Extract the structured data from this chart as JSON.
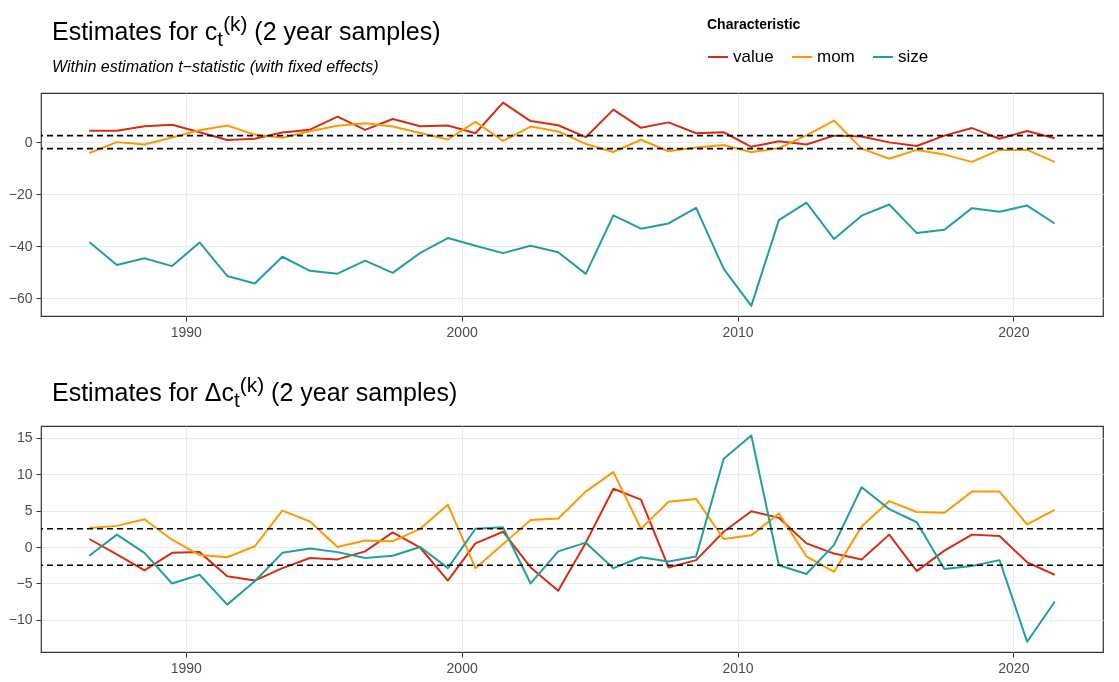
{
  "chart_data": [
    {
      "type": "line",
      "title": "Estimates for c$_{t}$$^{(k)}$ (2 year samples)",
      "subtitle": "Within estimation t−statistic (with fixed effects)",
      "legend_title": "Characteristic",
      "legend": "top right",
      "grid": true,
      "x": [
        1986.5,
        1987.5,
        1988.5,
        1989.5,
        1990.5,
        1991.5,
        1992.5,
        1993.5,
        1994.5,
        1995.5,
        1996.5,
        1997.5,
        1998.5,
        1999.5,
        2000.5,
        2001.5,
        2002.5,
        2003.5,
        2004.5,
        2005.5,
        2006.5,
        2007.5,
        2008.5,
        2009.5,
        2010.5,
        2011.5,
        2012.5,
        2013.5,
        2014.5,
        2015.5,
        2016.5,
        2017.5,
        2018.5,
        2019.5,
        2020.5,
        2021.5
      ],
      "xlim": [
        1984.75,
        2023.25
      ],
      "xticks": [
        1990,
        2000,
        2010,
        2020
      ],
      "ylim": [
        -66.9,
        18.9
      ],
      "yticks": [
        -60,
        -40,
        -20,
        0
      ],
      "series": [
        {
          "name": "value",
          "color": "#d62d12",
          "values": [
            4.4,
            4.4,
            6.1,
            6.7,
            3.8,
            0.8,
            1.3,
            3.7,
            4.8,
            9.8,
            4.7,
            8.9,
            6.1,
            6.4,
            3.4,
            15.2,
            8.1,
            6.5,
            1.9,
            12.5,
            5.5,
            7.6,
            3.4,
            3.8,
            -1.8,
            0.3,
            -0.9,
            2.5,
            2.2,
            -0.1,
            -1.5,
            2.5,
            5.4,
            1.3,
            4.3,
            1.5
          ]
        },
        {
          "name": "mom",
          "color": "#ff9900",
          "values": [
            -4.2,
            0,
            -0.9,
            1.8,
            4.6,
            6.4,
            2.9,
            1.7,
            4.2,
            6.3,
            7.3,
            6.0,
            3.5,
            1.0,
            7.8,
            0.5,
            6.0,
            4.1,
            -0.7,
            -3.8,
            0.9,
            -3.5,
            -2.1,
            -1.1,
            -3.9,
            -2.3,
            2.6,
            8.3,
            -2.5,
            -6.4,
            -3.0,
            -4.8,
            -7.6,
            -3.0,
            -3.0,
            -7.6
          ]
        },
        {
          "name": "size",
          "color": "#20a09a",
          "values": [
            -38.4,
            -47.3,
            -44.7,
            -47.7,
            -38.6,
            -51.5,
            -54.4,
            -44.1,
            -49.5,
            -50.6,
            -45.6,
            -50.3,
            -42.6,
            -36.9,
            -39.9,
            -42.7,
            -39.9,
            -42.4,
            -50.7,
            -28.2,
            -33.3,
            -31.3,
            -25.3,
            -48.8,
            -63.0,
            -30.0,
            -23.3,
            -37.3,
            -28.3,
            -24.0,
            -35.0,
            -33.7,
            -25.4,
            -26.8,
            -24.4,
            -31.3
          ]
        }
      ],
      "ref_lines": [
        {
          "axis": "y",
          "value": 2.5,
          "color": "#000000",
          "line_style": "dashed"
        },
        {
          "axis": "y",
          "value": -2.5,
          "color": "#000000",
          "line_style": "dashed"
        }
      ]
    },
    {
      "type": "line",
      "title": "Estimates for Δc$_{t}$$^{(k)}$ (2 year samples)",
      "legend": false,
      "grid": true,
      "x": [
        1986.5,
        1987.5,
        1988.5,
        1989.5,
        1990.5,
        1991.5,
        1992.5,
        1993.5,
        1994.5,
        1995.5,
        1996.5,
        1997.5,
        1998.5,
        1999.5,
        2000.5,
        2001.5,
        2002.5,
        2003.5,
        2004.5,
        2005.5,
        2006.5,
        2007.5,
        2008.5,
        2009.5,
        2010.5,
        2011.5,
        2012.5,
        2013.5,
        2014.5,
        2015.5,
        2016.5,
        2017.5,
        2018.5,
        2019.5,
        2020.5,
        2021.5
      ],
      "xlim": [
        1984.75,
        2023.25
      ],
      "xticks": [
        1990,
        2000,
        2010,
        2020
      ],
      "ylim": [
        -14.4,
        16.6
      ],
      "yticks": [
        -10,
        -5,
        0,
        5,
        10,
        15
      ],
      "series": [
        {
          "color": "#d62d12",
          "values": [
            1.1,
            -1.0,
            -3.2,
            -0.8,
            -0.7,
            -4.0,
            -4.6,
            -2.9,
            -1.5,
            -1.7,
            -0.6,
            2.0,
            -0.1,
            -4.6,
            0.5,
            2.1,
            -2.8,
            -6.0,
            0.6,
            8.0,
            6.5,
            -2.8,
            -1.8,
            2.1,
            4.9,
            4.0,
            0.5,
            -0.9,
            -1.7,
            1.7,
            -3.3,
            -0.5,
            1.7,
            1.5,
            -2.1,
            -3.8
          ]
        },
        {
          "color": "#ff9900",
          "values": [
            2.6,
            2.9,
            3.8,
            1.0,
            -1.1,
            -1.4,
            0.1,
            5.0,
            3.5,
            0.0,
            0.9,
            0.8,
            2.5,
            5.8,
            -2.9,
            0.4,
            3.7,
            3.9,
            7.6,
            10.3,
            2.5,
            6.2,
            6.6,
            1.1,
            1.6,
            4.6,
            -1.3,
            -3.4,
            2.8,
            6.3,
            4.8,
            4.7,
            7.6,
            7.6,
            3.1,
            5.1
          ]
        },
        {
          "color": "#20a09a",
          "values": [
            -1.2,
            1.7,
            -0.8,
            -5.0,
            -3.8,
            -7.9,
            -4.7,
            -0.8,
            -0.2,
            -0.7,
            -1.5,
            -1.2,
            0.0,
            -2.9,
            2.5,
            2.7,
            -5.0,
            -0.6,
            0.6,
            -2.9,
            -1.4,
            -2.0,
            -1.3,
            12.1,
            15.3,
            -2.5,
            -3.7,
            0.3,
            8.2,
            5.2,
            3.4,
            -3.0,
            -2.6,
            -1.8,
            -13.0,
            -7.5
          ]
        }
      ],
      "ref_lines": [
        {
          "axis": "y",
          "value": 2.5,
          "color": "#000000",
          "line_style": "dashed"
        },
        {
          "axis": "y",
          "value": -2.5,
          "color": "#000000",
          "line_style": "dashed"
        }
      ]
    }
  ]
}
